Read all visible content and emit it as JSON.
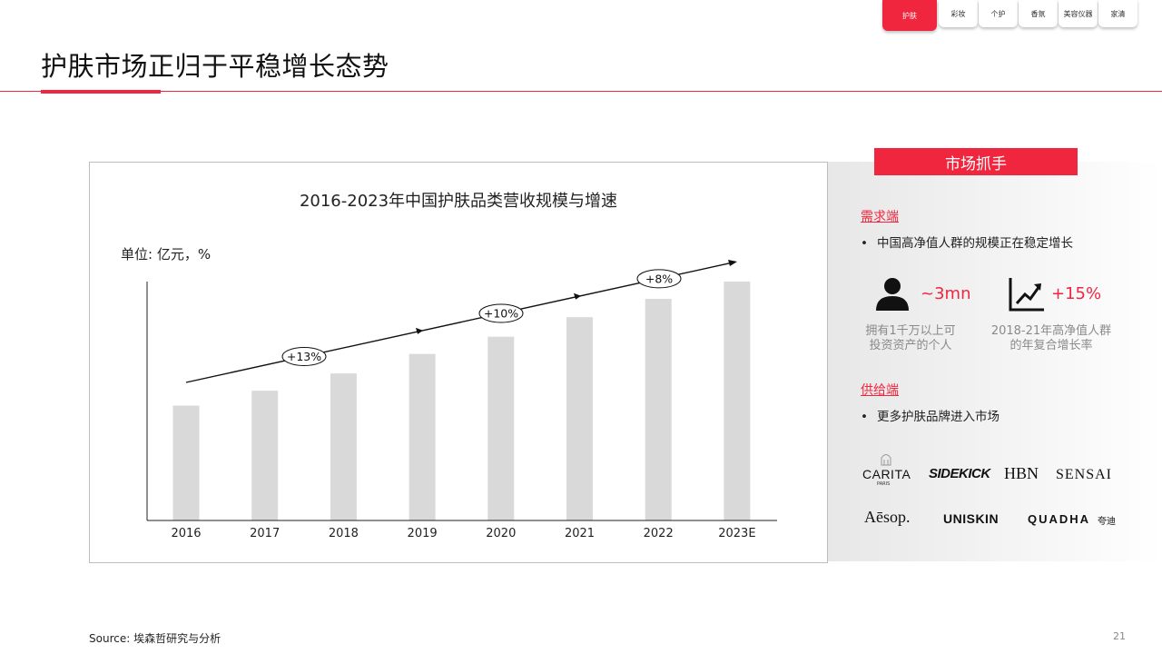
{
  "tabs": [
    "护肤",
    "彩妆",
    "个护",
    "香氛",
    "美容仪器",
    "家清"
  ],
  "active_tab": "护肤",
  "page_title": "护肤市场正归于平稳增长态势",
  "chart_data": {
    "type": "bar",
    "title": "2016-2023年中国护肤品类营收规模与增速",
    "unit": "单位: 亿元，%",
    "categories": [
      "2016",
      "2017",
      "2018",
      "2019",
      "2020",
      "2021",
      "2022",
      "2023E"
    ],
    "values": [
      100,
      113,
      128,
      145,
      160,
      177,
      193,
      208
    ],
    "ylim": [
      0,
      208
    ],
    "bar_color": "#d9d9d9",
    "growth_annotations": [
      "+13%",
      "+10%",
      "+8%"
    ],
    "grid": false,
    "legend": "none"
  },
  "right_panel": {
    "header": "市场抓手",
    "demand": {
      "heading": "需求端",
      "bullet": "中国高净值人群的规模正在稳定增长",
      "stats": [
        {
          "icon": "person-icon",
          "value": "~3mn",
          "desc_line1": "拥有1千万以上可",
          "desc_line2": "投资资产的个人"
        },
        {
          "icon": "growth-chart-icon",
          "value": "+15%",
          "desc_line1": "2018-21年高净值人群",
          "desc_line2": "的年复合增长率"
        }
      ]
    },
    "supply": {
      "heading": "供给端",
      "bullet": "更多护肤品牌进入市场"
    },
    "brands": {
      "carita": "CARITA",
      "carita_sub": "PARIS",
      "sidekick": "SIDEKICK",
      "hbn": "HBN",
      "sensai": "SENSAI",
      "aesop": "Aēsop.",
      "uniskin": "UNISKIN",
      "quadha": "QUADHA",
      "quadha_cn": "夸迪"
    }
  },
  "source": "Source: 埃森哲研究与分析",
  "page_number": "21",
  "colors": {
    "accent": "#f0263f",
    "bar": "#d9d9d9",
    "grey_text": "#8a8a8a"
  }
}
